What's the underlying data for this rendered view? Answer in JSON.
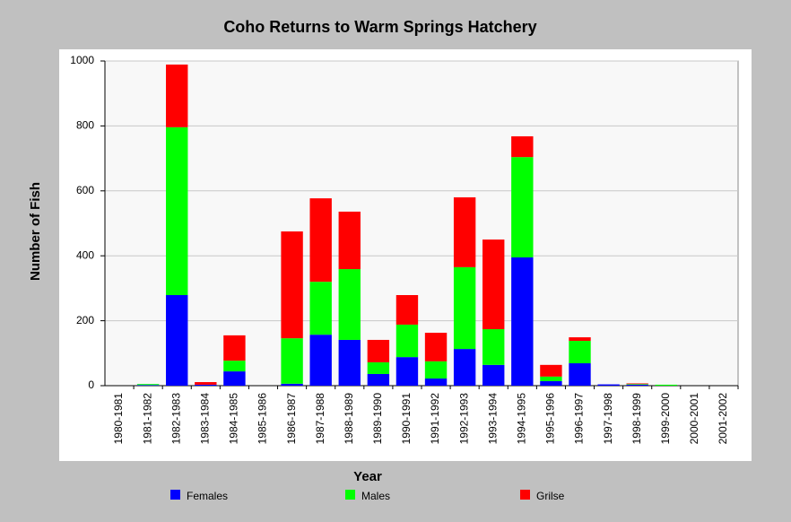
{
  "chart_data": {
    "type": "stacked_bar",
    "title": "Coho Returns to Warm Springs Hatchery",
    "x_label": "Year",
    "y_label": "Number of Fish",
    "categories": [
      "1980-1981",
      "1981-1982",
      "1982-1983",
      "1983-1984",
      "1984-1985",
      "1985-1986",
      "1986-1987",
      "1987-1988",
      "1988-1989",
      "1989-1990",
      "1990-1991",
      "1991-1992",
      "1992-1993",
      "1993-1994",
      "1994-1995",
      "1995-1996",
      "1996-1997",
      "1997-1998",
      "1998-1999",
      "1999-2000",
      "2000-2001",
      "2001-2002"
    ],
    "series": [
      {
        "name": "Females",
        "color": "#0000ff",
        "values": [
          0,
          2,
          279,
          3,
          44,
          0,
          6,
          157,
          141,
          36,
          88,
          22,
          113,
          64,
          395,
          14,
          69,
          4,
          3,
          0,
          0,
          0
        ]
      },
      {
        "name": "Males",
        "color": "#00ff00",
        "values": [
          0,
          3,
          517,
          0,
          33,
          0,
          140,
          163,
          218,
          36,
          100,
          53,
          252,
          110,
          309,
          14,
          69,
          0,
          2,
          3,
          0,
          0
        ]
      },
      {
        "name": "Grilse",
        "color": "#ff0000",
        "values": [
          0,
          0,
          193,
          8,
          78,
          0,
          329,
          257,
          177,
          69,
          91,
          88,
          215,
          276,
          64,
          36,
          11,
          0,
          2,
          0,
          0,
          0
        ]
      }
    ],
    "ylim": [
      0,
      1000
    ],
    "yticks": [
      0,
      200,
      400,
      600,
      800,
      1000
    ],
    "grid": true
  }
}
